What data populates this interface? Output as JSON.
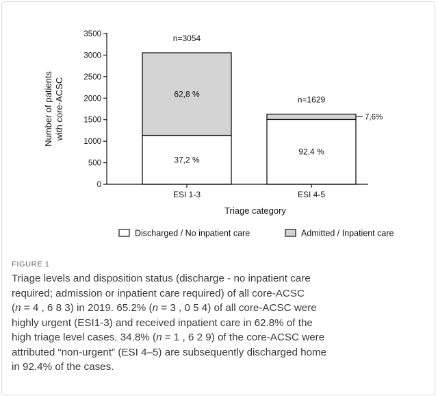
{
  "chart_data": {
    "type": "bar",
    "stacked": true,
    "categories": [
      "ESI 1-3",
      "ESI 4-5"
    ],
    "series": [
      {
        "name": "Discharged / No inpatient care",
        "values": [
          1136,
          1505
        ],
        "color": "#ffffff",
        "labels": [
          "37,2 %",
          "92,4 %"
        ]
      },
      {
        "name": "Admitted / Inpatient care",
        "values": [
          1918,
          124
        ],
        "color": "#d4d4d4",
        "labels": [
          "62,8 %",
          "7,6%"
        ]
      }
    ],
    "totals_labels": [
      "n=3054",
      "n=1629"
    ],
    "xlabel": "Triage category",
    "ylabel_lines": [
      "Number of patients",
      "with core-ACSC"
    ],
    "ylim": [
      0,
      3500
    ],
    "yticks": [
      0,
      500,
      1000,
      1500,
      2000,
      2500,
      3000,
      3500
    ],
    "legend_position": "bottom"
  },
  "caption": {
    "label": "FIGURE 1",
    "lines": [
      [
        {
          "t": "Triage levels and disposition status (discharge - no inpatient care"
        }
      ],
      [
        {
          "t": "required; admission or inpatient care required) of all core-ACSC"
        }
      ],
      [
        {
          "t": "("
        },
        {
          "t": "n",
          "i": true
        },
        {
          "t": " = 4 , 6 8 3) in 2019. 65.2% ("
        },
        {
          "t": "n",
          "i": true
        },
        {
          "t": " = 3 , 0 5 4) of all core-ACSC were"
        }
      ],
      [
        {
          "t": "highly urgent (ESI1-3) and received inpatient care in 62.8% of the"
        }
      ],
      [
        {
          "t": "high triage level cases. 34.8% ("
        },
        {
          "t": "n",
          "i": true
        },
        {
          "t": " = 1 , 6 2 9) of the core-ACSC were"
        }
      ],
      [
        {
          "t": "attributed “non-urgent” (ESI 4–5) are subsequently discharged home"
        }
      ],
      [
        {
          "t": "in 92.4% of the cases."
        }
      ]
    ]
  }
}
